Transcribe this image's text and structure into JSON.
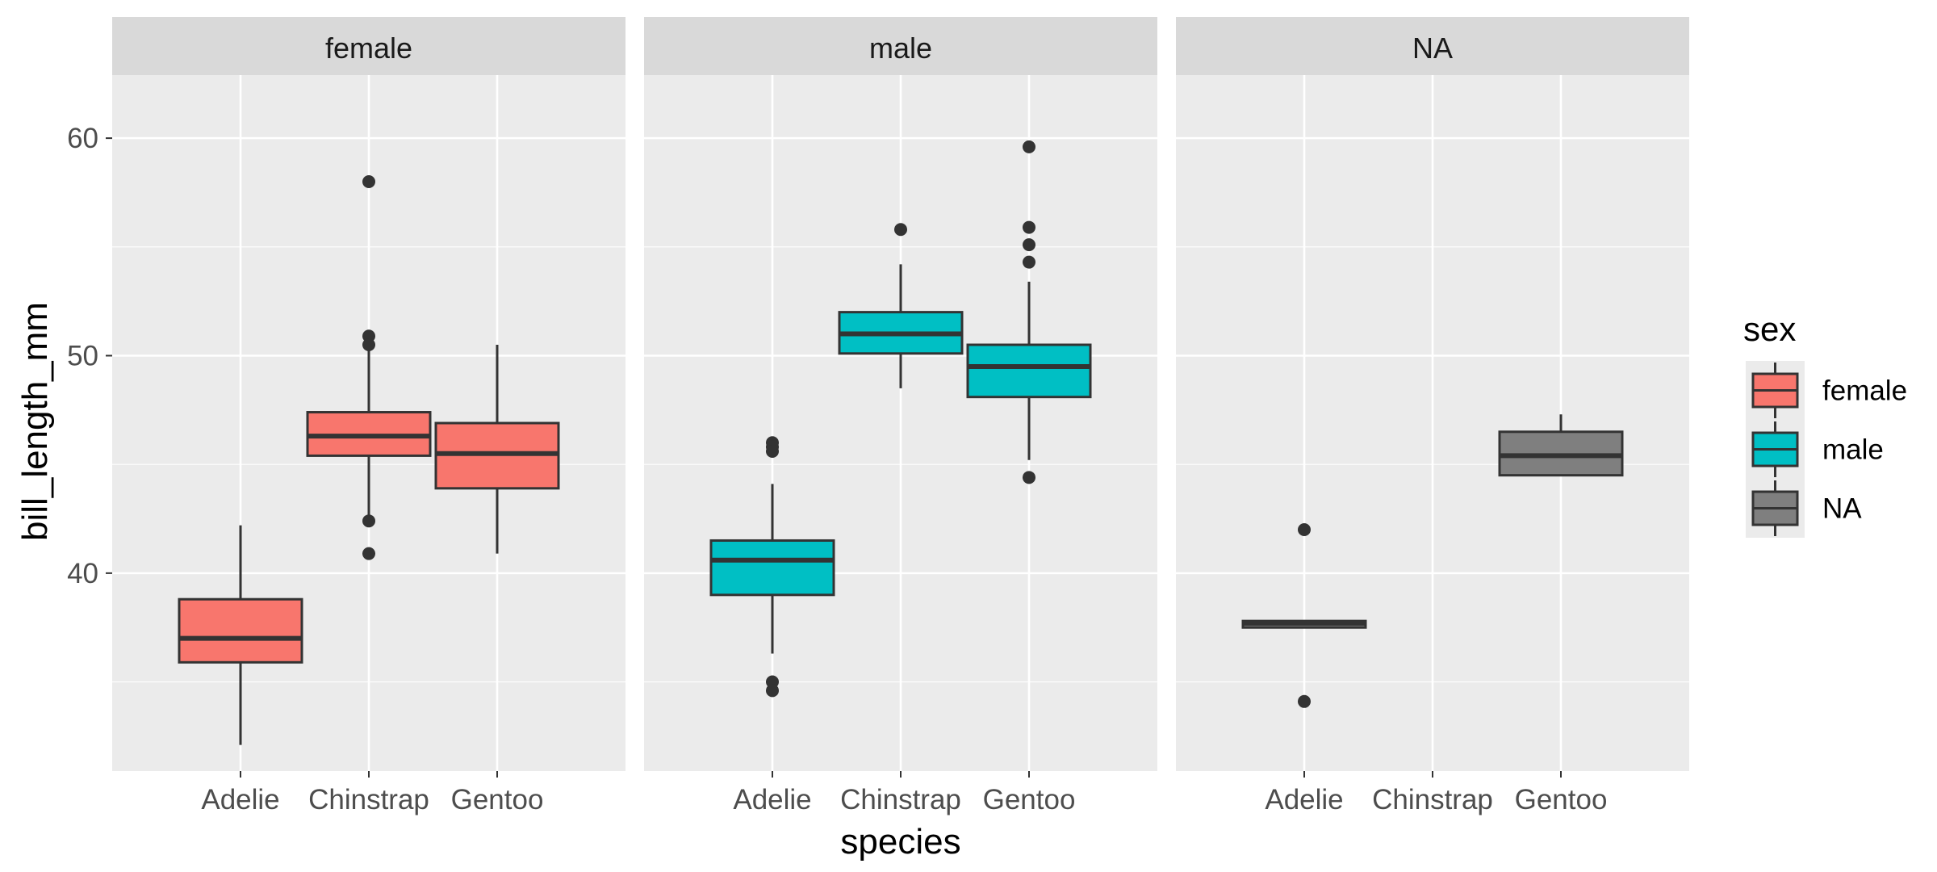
{
  "chart_data": {
    "type": "boxplot",
    "title": "",
    "xlabel": "species",
    "ylabel": "bill_length_mm",
    "ylim": [
      30.9,
      62.9
    ],
    "yticks": [
      40,
      50,
      60
    ],
    "categories": [
      "Adelie",
      "Chinstrap",
      "Gentoo"
    ],
    "facet_labels": [
      "female",
      "male",
      "NA"
    ],
    "legend": {
      "title": "sex",
      "position": "right",
      "entries": [
        {
          "label": "female",
          "color": "#F8766D"
        },
        {
          "label": "male",
          "color": "#00BFC4"
        },
        {
          "label": "NA",
          "color": "#7F7F7F"
        }
      ]
    },
    "grid": true,
    "facets": [
      {
        "label": "female",
        "color": "#F8766D",
        "boxes": [
          {
            "species": "Adelie",
            "min": 32.1,
            "q1": 35.9,
            "median": 37.0,
            "q3": 38.8,
            "max": 42.2,
            "outliers": []
          },
          {
            "species": "Chinstrap",
            "min": 42.5,
            "q1": 45.4,
            "median": 46.3,
            "q3": 47.4,
            "max": 50.3,
            "outliers": [
              58.0,
              50.9,
              50.5,
              42.4,
              40.9
            ]
          },
          {
            "species": "Gentoo",
            "min": 40.9,
            "q1": 43.9,
            "median": 45.5,
            "q3": 46.9,
            "max": 50.5,
            "outliers": []
          }
        ]
      },
      {
        "label": "male",
        "color": "#00BFC4",
        "boxes": [
          {
            "species": "Adelie",
            "min": 36.3,
            "q1": 39.0,
            "median": 40.6,
            "q3": 41.5,
            "max": 44.1,
            "outliers": [
              46.0,
              45.8,
              45.6,
              35.0,
              34.6
            ]
          },
          {
            "species": "Chinstrap",
            "min": 48.5,
            "q1": 50.1,
            "median": 51.0,
            "q3": 52.0,
            "max": 54.2,
            "outliers": [
              55.8
            ]
          },
          {
            "species": "Gentoo",
            "min": 45.2,
            "q1": 48.1,
            "median": 49.5,
            "q3": 50.5,
            "max": 53.4,
            "outliers": [
              59.6,
              55.9,
              55.1,
              54.3,
              44.4
            ]
          }
        ]
      },
      {
        "label": "NA",
        "color": "#7F7F7F",
        "boxes": [
          {
            "species": "Adelie",
            "min": 37.5,
            "q1": 37.5,
            "median": 37.7,
            "q3": 37.8,
            "max": 37.8,
            "outliers": [
              42.0,
              34.1
            ]
          },
          {
            "species": "Gentoo",
            "min": 44.5,
            "q1": 44.5,
            "median": 45.4,
            "q3": 46.5,
            "max": 47.3,
            "outliers": []
          }
        ]
      }
    ]
  }
}
